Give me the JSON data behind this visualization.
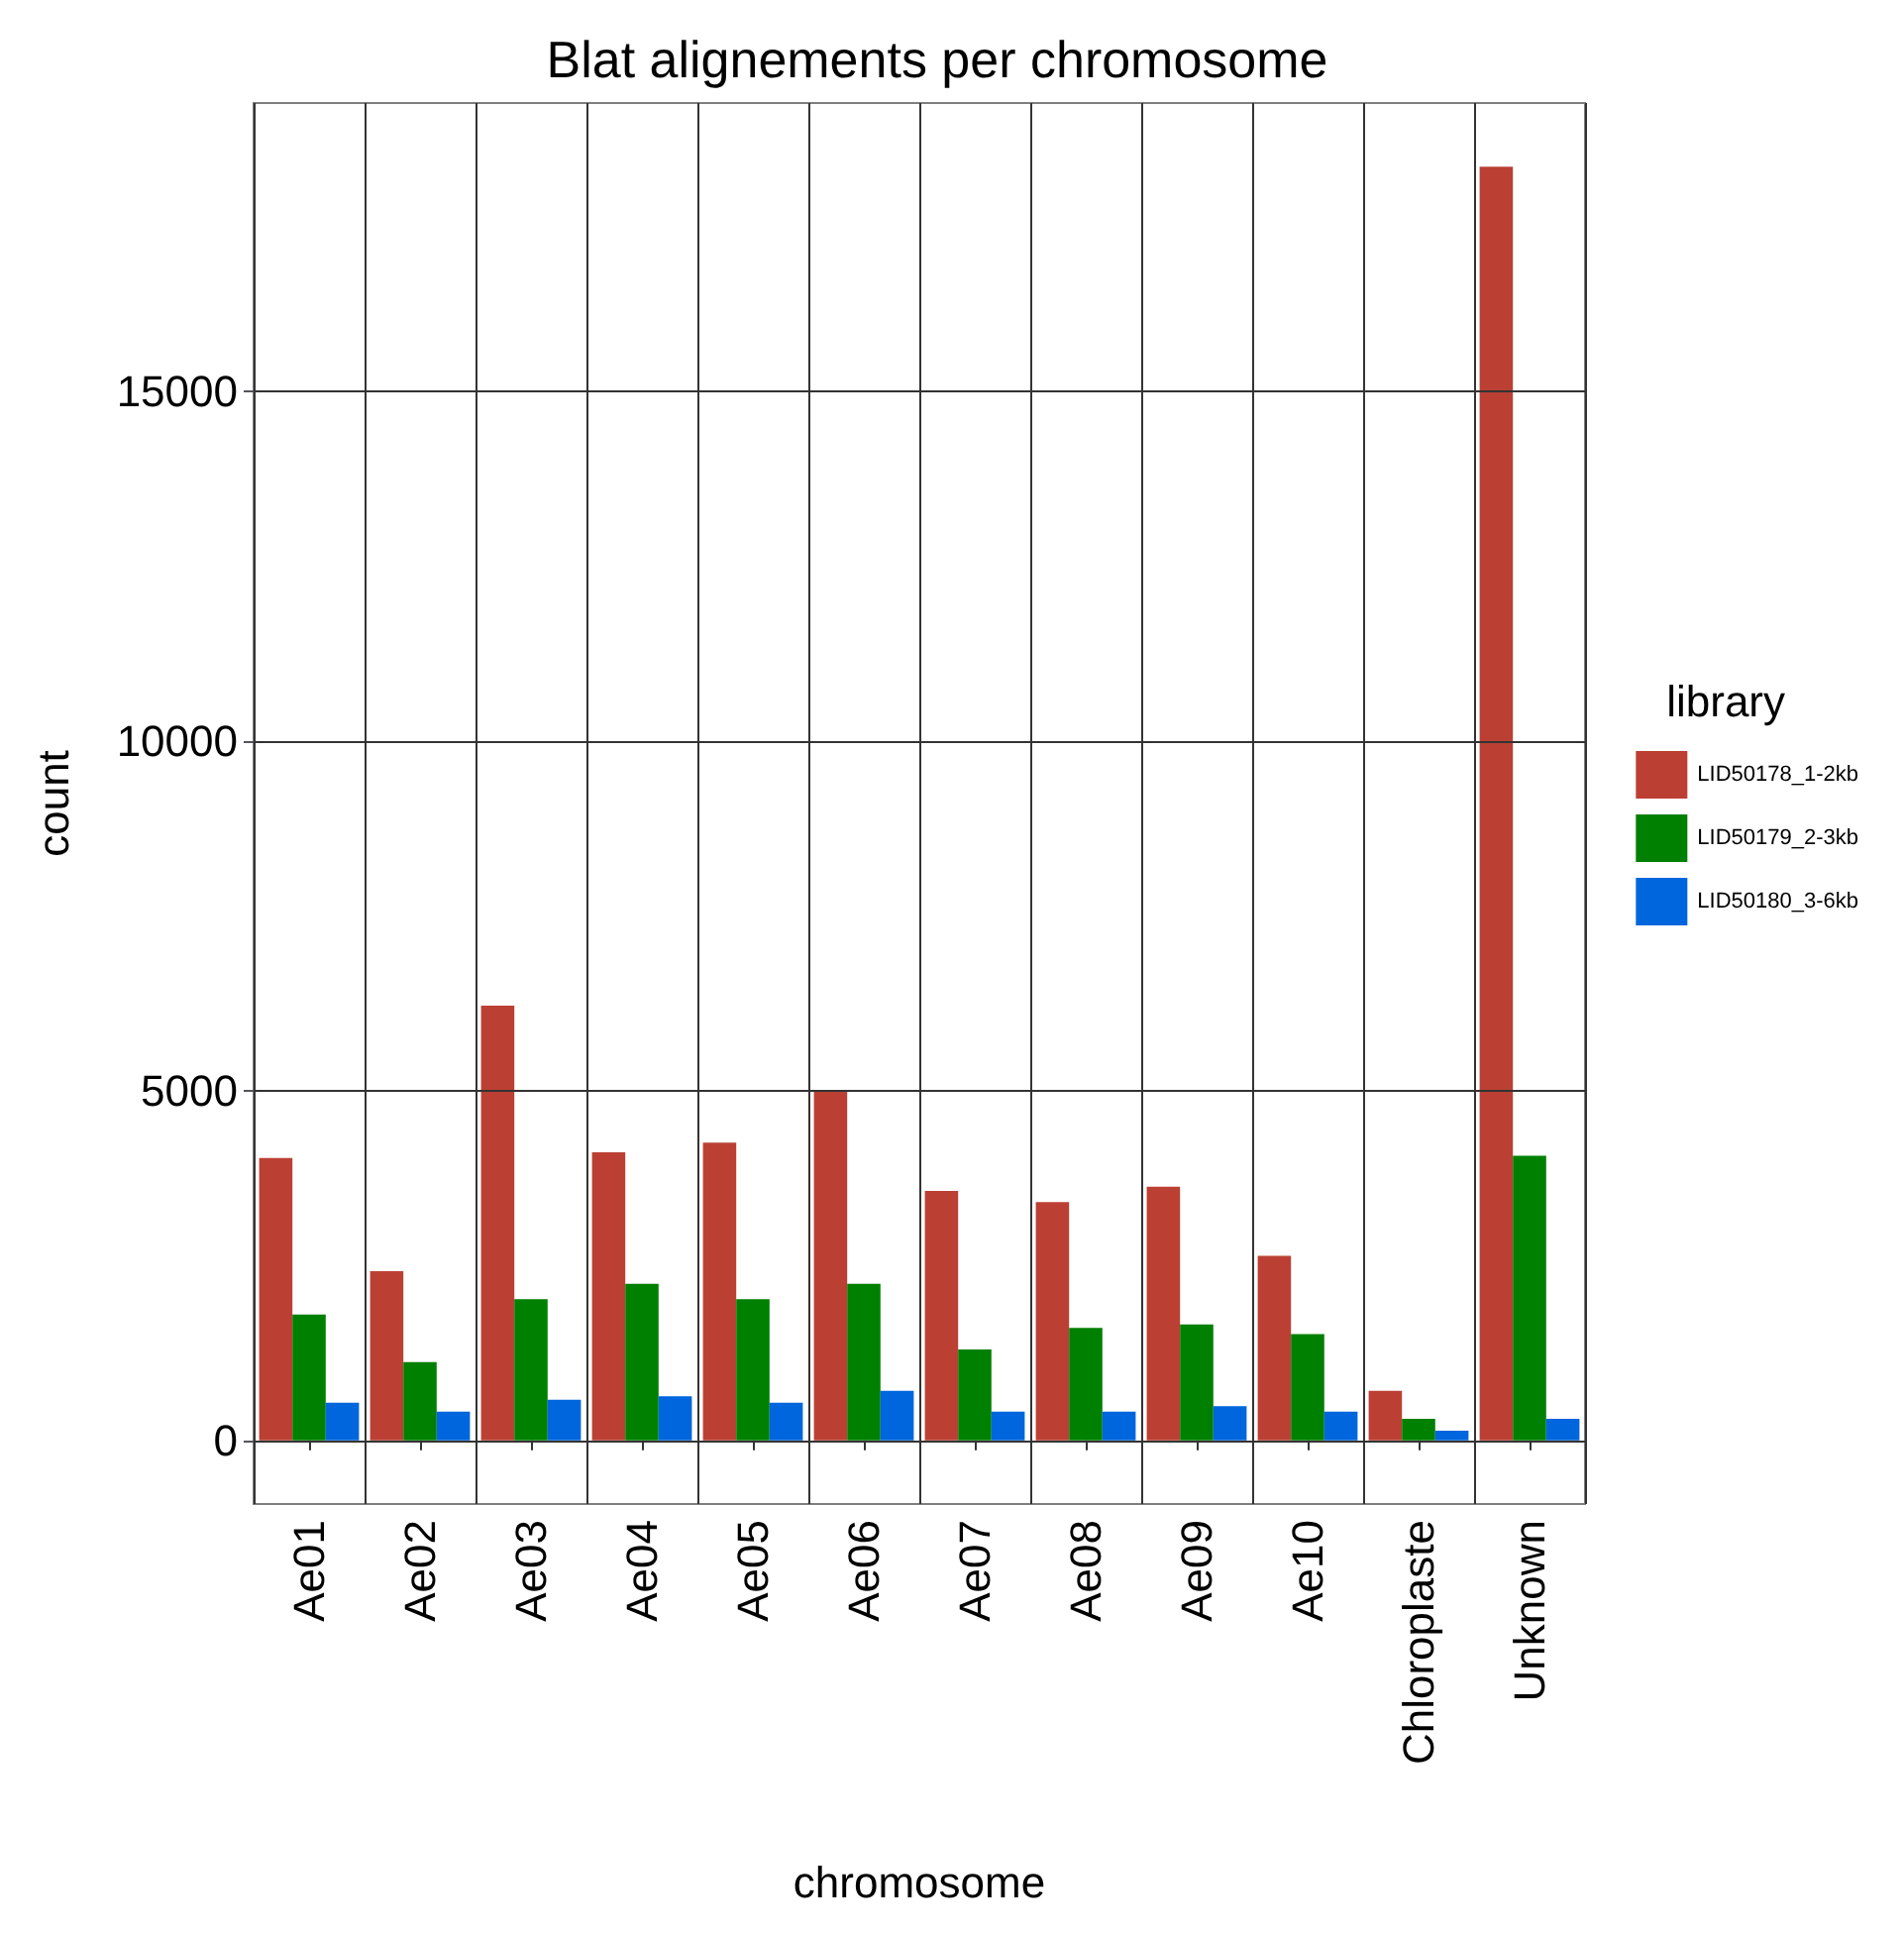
{
  "chart_data": {
    "type": "bar",
    "title": "Blat alignements per chromosome",
    "xlabel": "chromosome",
    "ylabel": "count",
    "legend_title": "library",
    "categories": [
      "Ae01",
      "Ae02",
      "Ae03",
      "Ae04",
      "Ae05",
      "Ae06",
      "Ae07",
      "Ae08",
      "Ae09",
      "Ae10",
      "Chloroplaste",
      "Unknown"
    ],
    "series": [
      {
        "name": "LID50178_1-2kb",
        "color": "#bb4033",
        "values": [
          4040,
          2420,
          6220,
          4120,
          4260,
          5010,
          3570,
          3410,
          3630,
          2640,
          710,
          18220
        ]
      },
      {
        "name": "LID50179_2-3kb",
        "color": "#008000",
        "values": [
          1800,
          1120,
          2020,
          2240,
          2020,
          2240,
          1300,
          1610,
          1660,
          1520,
          310,
          4070
        ]
      },
      {
        "name": "LID50180_3-6kb",
        "color": "#0066dd",
        "values": [
          540,
          410,
          580,
          630,
          540,
          710,
          410,
          410,
          490,
          410,
          140,
          310
        ]
      }
    ],
    "ylim": [
      -910,
      19130
    ],
    "yticks": [
      0,
      5000,
      10000,
      15000
    ],
    "grid": true,
    "legend": "right"
  }
}
